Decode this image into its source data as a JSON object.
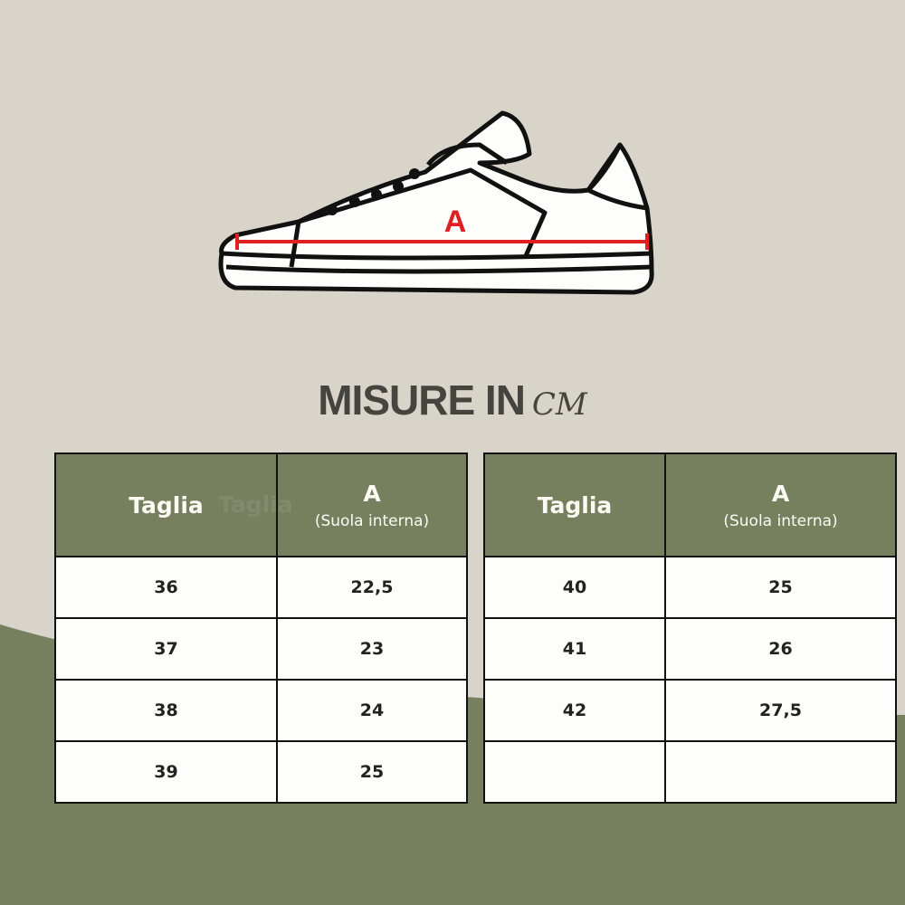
{
  "diagram": {
    "measure_label": "A",
    "measure_color": "#e02020"
  },
  "title": {
    "main": "MISURE IN",
    "unit": "CM"
  },
  "colors": {
    "background": "#d9d4c9",
    "accent": "#76805f"
  },
  "ghost_text": "Taglia",
  "tables": [
    {
      "headers": {
        "size": "Taglia",
        "a": "A",
        "a_sub": "(Suola interna)"
      },
      "rows": [
        {
          "size": "36",
          "a": "22,5"
        },
        {
          "size": "37",
          "a": "23"
        },
        {
          "size": "38",
          "a": "24"
        },
        {
          "size": "39",
          "a": "25"
        }
      ]
    },
    {
      "headers": {
        "size": "Taglia",
        "a": "A",
        "a_sub": "(Suola interna)"
      },
      "rows": [
        {
          "size": "40",
          "a": "25"
        },
        {
          "size": "41",
          "a": "26"
        },
        {
          "size": "42",
          "a": "27,5"
        },
        {
          "size": "",
          "a": ""
        }
      ]
    }
  ]
}
